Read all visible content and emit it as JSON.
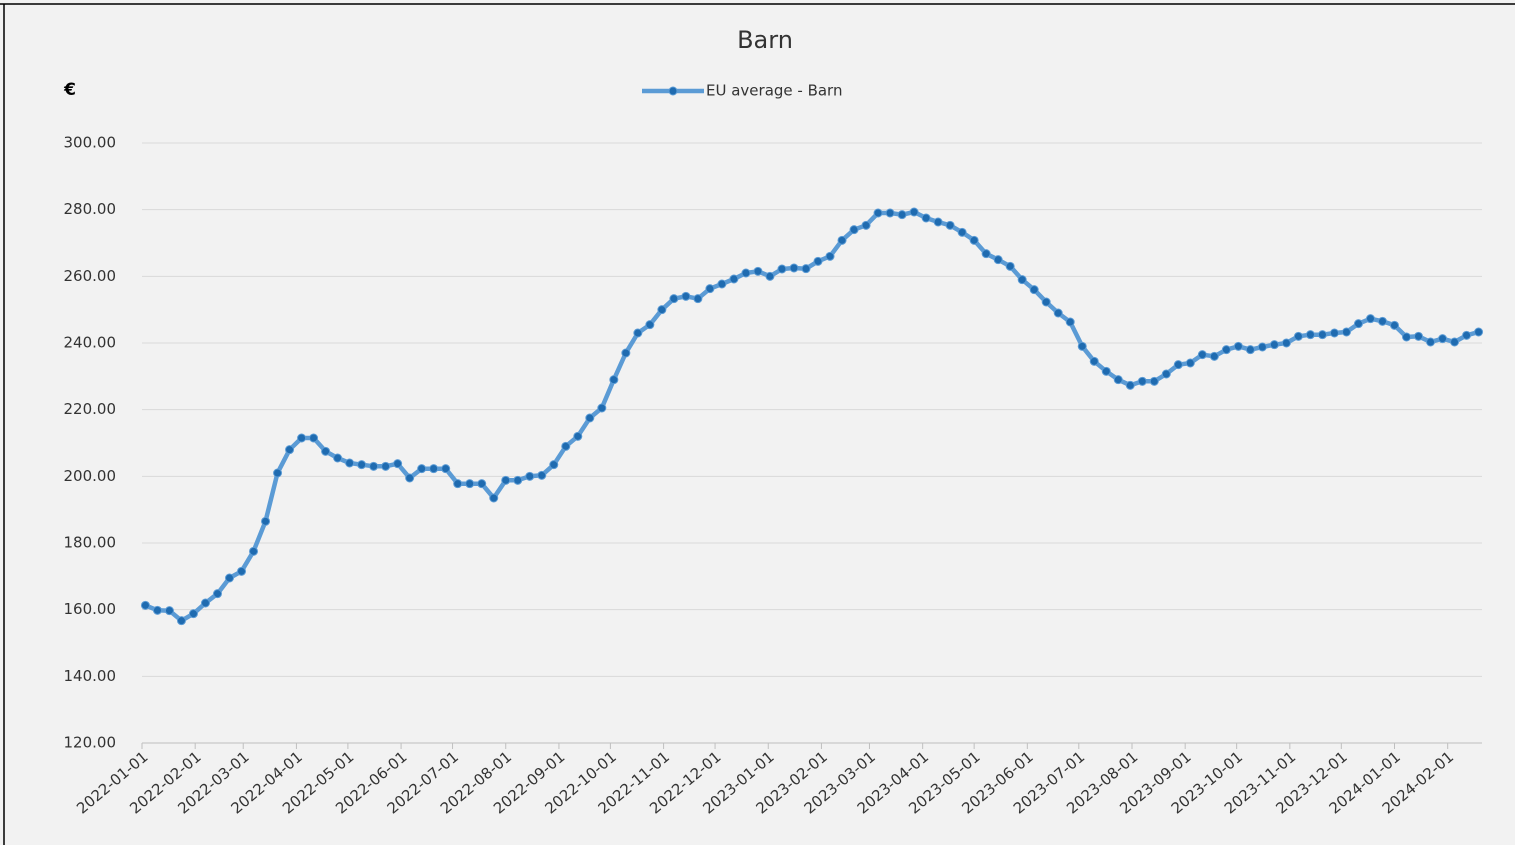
{
  "chart_data": {
    "type": "line",
    "title": "Barn",
    "ylabel": "€",
    "x": [
      "2022-01-03",
      "2022-01-10",
      "2022-01-17",
      "2022-01-24",
      "2022-01-31",
      "2022-02-07",
      "2022-02-14",
      "2022-02-21",
      "2022-02-28",
      "2022-03-07",
      "2022-03-14",
      "2022-03-21",
      "2022-03-28",
      "2022-04-04",
      "2022-04-11",
      "2022-04-18",
      "2022-04-25",
      "2022-05-02",
      "2022-05-09",
      "2022-05-16",
      "2022-05-23",
      "2022-05-30",
      "2022-06-06",
      "2022-06-13",
      "2022-06-20",
      "2022-06-27",
      "2022-07-04",
      "2022-07-11",
      "2022-07-18",
      "2022-07-25",
      "2022-08-01",
      "2022-08-08",
      "2022-08-15",
      "2022-08-22",
      "2022-08-29",
      "2022-09-05",
      "2022-09-12",
      "2022-09-19",
      "2022-09-26",
      "2022-10-03",
      "2022-10-10",
      "2022-10-17",
      "2022-10-24",
      "2022-10-31",
      "2022-11-07",
      "2022-11-14",
      "2022-11-21",
      "2022-11-28",
      "2022-12-05",
      "2022-12-12",
      "2022-12-19",
      "2022-12-26",
      "2023-01-02",
      "2023-01-09",
      "2023-01-16",
      "2023-01-23",
      "2023-01-30",
      "2023-02-06",
      "2023-02-13",
      "2023-02-20",
      "2023-02-27",
      "2023-03-06",
      "2023-03-13",
      "2023-03-20",
      "2023-03-27",
      "2023-04-03",
      "2023-04-10",
      "2023-04-17",
      "2023-04-24",
      "2023-05-01",
      "2023-05-08",
      "2023-05-15",
      "2023-05-22",
      "2023-05-29",
      "2023-06-05",
      "2023-06-12",
      "2023-06-19",
      "2023-06-26",
      "2023-07-03",
      "2023-07-10",
      "2023-07-17",
      "2023-07-24",
      "2023-07-31",
      "2023-08-07",
      "2023-08-14",
      "2023-08-21",
      "2023-08-28",
      "2023-09-04",
      "2023-09-11",
      "2023-09-18",
      "2023-09-25",
      "2023-10-02",
      "2023-10-09",
      "2023-10-16",
      "2023-10-23",
      "2023-10-30",
      "2023-11-06",
      "2023-11-13",
      "2023-11-20",
      "2023-11-27",
      "2023-12-04",
      "2023-12-11",
      "2023-12-18",
      "2023-12-25",
      "2024-01-01",
      "2024-01-08",
      "2024-01-15",
      "2024-01-22",
      "2024-01-29",
      "2024-02-05",
      "2024-02-12",
      "2024-02-19"
    ],
    "series": [
      {
        "name": "EU average - Barn",
        "color": "#5b9bd5",
        "marker_color": "#1f6bb0",
        "values": [
          161.3,
          159.8,
          159.7,
          156.7,
          158.8,
          162.0,
          164.8,
          169.5,
          171.5,
          177.5,
          186.5,
          201.0,
          208.0,
          211.5,
          211.5,
          207.5,
          205.5,
          204.0,
          203.5,
          203.0,
          203.0,
          203.8,
          199.5,
          202.3,
          202.3,
          202.3,
          197.8,
          197.8,
          197.8,
          193.5,
          198.8,
          198.8,
          200.0,
          200.3,
          203.5,
          209.0,
          212.0,
          217.5,
          220.5,
          229.0,
          237.0,
          243.0,
          245.5,
          250.0,
          253.3,
          254.0,
          253.3,
          256.3,
          257.7,
          259.2,
          261.0,
          261.5,
          260.0,
          262.2,
          262.5,
          262.3,
          264.5,
          266.0,
          270.8,
          274.0,
          275.3,
          279.0,
          279.0,
          278.5,
          279.3,
          277.5,
          276.3,
          275.3,
          273.2,
          270.8,
          266.8,
          265.0,
          263.0,
          259.0,
          256.0,
          252.3,
          249.0,
          246.3,
          239.0,
          234.5,
          231.5,
          229.0,
          227.3,
          228.5,
          228.5,
          230.7,
          233.5,
          234.0,
          236.5,
          236.0,
          238.0,
          239.0,
          238.0,
          238.8,
          239.5,
          240.0,
          242.0,
          242.5,
          242.5,
          243.0,
          243.3,
          245.8,
          247.3,
          246.5,
          245.3,
          241.8,
          242.0,
          240.3,
          241.3,
          240.3,
          242.3,
          243.3
        ]
      }
    ],
    "xlim": [
      "2022-01-01",
      "2024-02-21"
    ],
    "xticks": [
      "2022-01-01",
      "2022-02-01",
      "2022-03-01",
      "2022-04-01",
      "2022-05-01",
      "2022-06-01",
      "2022-07-01",
      "2022-08-01",
      "2022-09-01",
      "2022-10-01",
      "2022-11-01",
      "2022-12-01",
      "2023-01-01",
      "2023-02-01",
      "2023-03-01",
      "2023-04-01",
      "2023-05-01",
      "2023-06-01",
      "2023-07-01",
      "2023-08-01",
      "2023-09-01",
      "2023-10-01",
      "2023-11-01",
      "2023-12-01",
      "2024-01-01",
      "2024-02-01"
    ],
    "ylim": [
      120,
      300
    ],
    "yticks": [
      {
        "value": 120,
        "label": "120.00"
      },
      {
        "value": 140,
        "label": "140.00"
      },
      {
        "value": 160,
        "label": "160.00"
      },
      {
        "value": 180,
        "label": "180.00"
      },
      {
        "value": 200,
        "label": "200.00"
      },
      {
        "value": 220,
        "label": "220.00"
      },
      {
        "value": 240,
        "label": "240.00"
      },
      {
        "value": 260,
        "label": "260.00"
      },
      {
        "value": 280,
        "label": "280.00"
      },
      {
        "value": 300,
        "label": "300.00"
      }
    ],
    "grid": true,
    "legend": "top"
  }
}
